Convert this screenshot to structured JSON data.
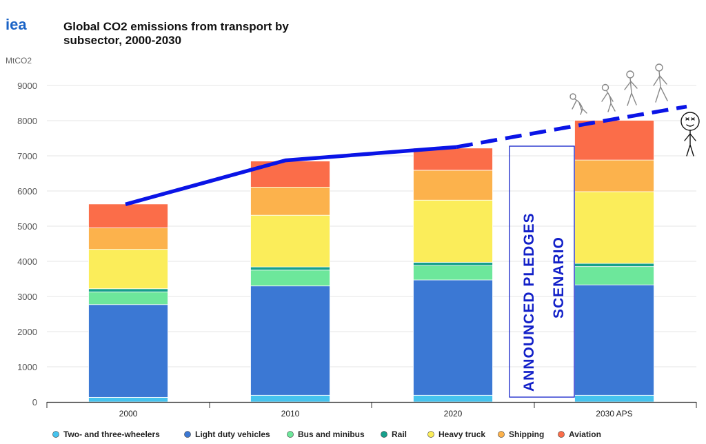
{
  "logo": "iea",
  "annotation": {
    "line1": "ANNOUNCED  PLEDGES",
    "line2": "SCENARIO"
  },
  "chart_data": {
    "type": "bar",
    "stacked": true,
    "title": "Global CO2 emissions from transport by subsector, 2000-2030",
    "title_lines": [
      "Global CO2 emissions from transport by",
      "subsector, 2000-2030"
    ],
    "ylabel": "MtCO2",
    "ylim": [
      0,
      9000
    ],
    "yticks": [
      0,
      1000,
      2000,
      3000,
      4000,
      5000,
      6000,
      7000,
      8000,
      9000
    ],
    "grid": true,
    "legend_position": "bottom",
    "categories": [
      "2000",
      "2010",
      "2020",
      "2030 APS"
    ],
    "series": [
      {
        "name": "Two- and three-wheelers",
        "color": "#45c3ee",
        "values": [
          130,
          190,
          190,
          190
        ]
      },
      {
        "name": "Light duty vehicles",
        "color": "#3b78d4",
        "values": [
          2640,
          3110,
          3280,
          3140
        ]
      },
      {
        "name": "Bus and minibus",
        "color": "#6de79b",
        "values": [
          360,
          450,
          410,
          520
        ]
      },
      {
        "name": "Rail",
        "color": "#16a08c",
        "values": [
          90,
          90,
          90,
          90
        ]
      },
      {
        "name": "Heavy truck",
        "color": "#fbed5a",
        "values": [
          1120,
          1470,
          1770,
          2040
        ]
      },
      {
        "name": "Shipping",
        "color": "#fcb24c",
        "values": [
          610,
          800,
          850,
          900
        ]
      },
      {
        "name": "Aviation",
        "color": "#fb6d49",
        "values": [
          680,
          740,
          630,
          1130
        ]
      }
    ],
    "overlay_line": {
      "color": "#0a14e6",
      "solid": [
        [
          "2000",
          5620
        ],
        [
          "2010",
          6870
        ],
        [
          "2020",
          7250
        ]
      ],
      "dashed": [
        [
          "2020",
          7250
        ],
        [
          "2030 APS",
          7960
        ],
        [
          "end",
          8400
        ]
      ]
    }
  }
}
